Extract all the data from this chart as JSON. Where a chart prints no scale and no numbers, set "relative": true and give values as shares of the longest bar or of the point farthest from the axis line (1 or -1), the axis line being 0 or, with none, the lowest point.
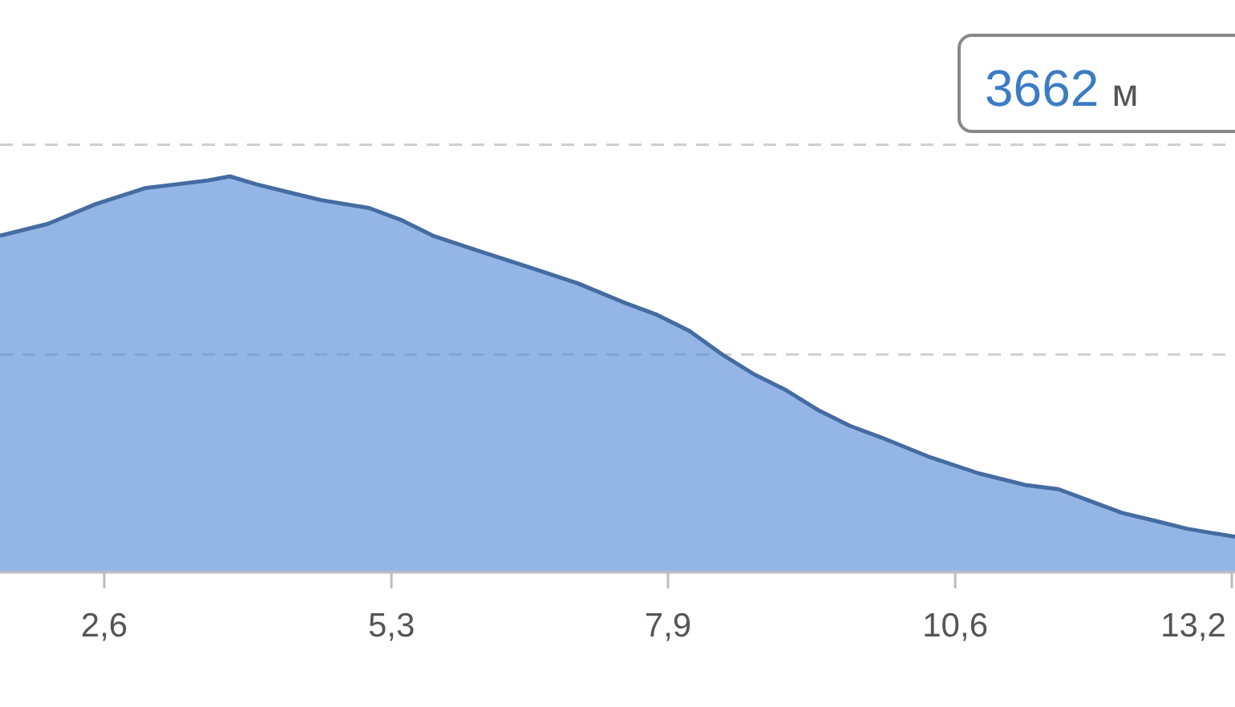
{
  "chart_data": {
    "type": "area",
    "relative": true,
    "color": "#5b8fd8",
    "ref_lines": [
      {
        "axis": "y",
        "value": 0.55,
        "color": "#cfcfcf",
        "line_style": "dashed"
      },
      {
        "axis": "y",
        "value": 1.08,
        "color": "#cfcfcf",
        "line_style": "dashed"
      }
    ],
    "x": [
      1.62,
      2.07,
      2.52,
      2.98,
      3.28,
      3.58,
      3.78,
      4.03,
      4.33,
      4.64,
      5.09,
      5.39,
      5.69,
      6.14,
      6.6,
      7.05,
      7.5,
      7.8,
      8.1,
      8.41,
      8.71,
      9.01,
      9.31,
      9.61,
      9.91,
      10.37,
      10.82,
      11.27,
      11.57,
      11.87,
      12.17,
      12.48,
      12.78,
      13.0,
      13.23
    ],
    "values": [
      0.85,
      0.88,
      0.93,
      0.97,
      0.98,
      0.99,
      1,
      0.98,
      0.96,
      0.94,
      0.92,
      0.89,
      0.85,
      0.81,
      0.77,
      0.73,
      0.68,
      0.65,
      0.61,
      0.55,
      0.5,
      0.46,
      0.41,
      0.37,
      0.34,
      0.29,
      0.25,
      0.22,
      0.21,
      0.18,
      0.15,
      0.13,
      0.11,
      0.1,
      0.09
    ],
    "xlim": [
      1.62,
      13.23
    ],
    "xticks": [
      {
        "value": 2.6,
        "label": "2,6"
      },
      {
        "value": 5.3,
        "label": "5,3"
      },
      {
        "value": 7.9,
        "label": "7,9"
      },
      {
        "value": 10.6,
        "label": "10,6"
      },
      {
        "value": 13.2,
        "label": "13,2"
      }
    ],
    "annotations": [
      "3662 м"
    ]
  }
}
